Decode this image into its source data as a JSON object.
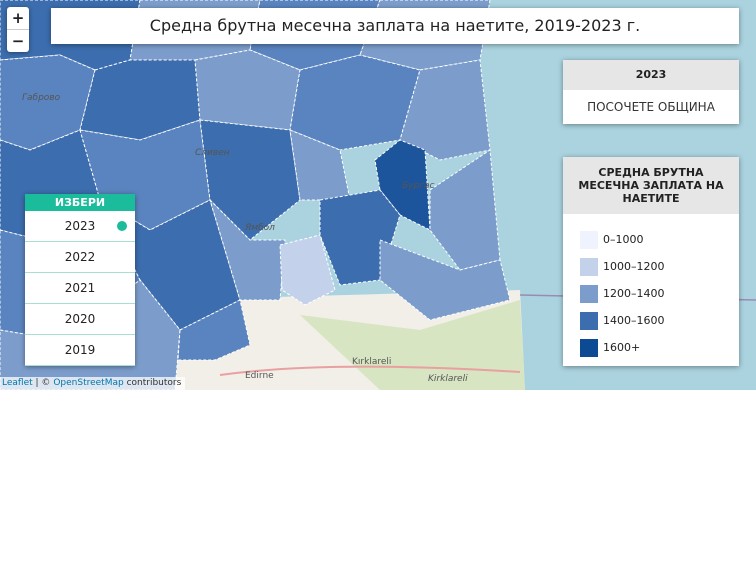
{
  "map": {
    "title": "Средна брутна месечна заплата на наетите, 2019-2023 г.",
    "zoom": {
      "in": "+",
      "out": "−"
    },
    "info": {
      "year": "2023",
      "prompt": "ПОСОЧЕТЕ ОБЩИНА"
    },
    "legend": {
      "title": "СРЕДНА БРУТНА МЕСЕЧНА ЗАПЛАТА НА НАЕТИТЕ",
      "items": [
        {
          "label": "0–1000",
          "color": "#eef3fd"
        },
        {
          "label": "1000–1200",
          "color": "#c3d2ea"
        },
        {
          "label": "1200–1400",
          "color": "#7c9dcc"
        },
        {
          "label": "1400–1600",
          "color": "#3c6dae"
        },
        {
          "label": "1600+",
          "color": "#0c4a93"
        }
      ]
    },
    "selector": {
      "title": "ИЗБЕРИ",
      "years": [
        "2023",
        "2022",
        "2021",
        "2020",
        "2019"
      ],
      "selected": 0
    },
    "attribution": {
      "leaflet": "Leaflet",
      "separator": "| ©",
      "osm": "OpenStreetMap",
      "contributors": "contributors"
    },
    "places": [
      "Габрово",
      "Сливен",
      "Ямбол",
      "Бургас",
      "Kırklareli",
      "Edirne",
      "Kirklareli"
    ]
  }
}
